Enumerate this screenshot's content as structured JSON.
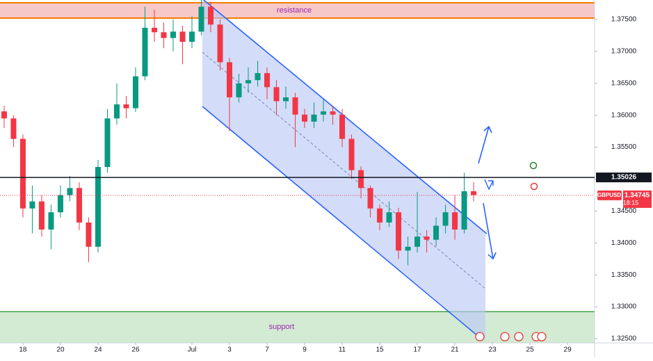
{
  "chart_data": {
    "type": "candlestick",
    "x": [
      -1,
      -0.5,
      0,
      0.5,
      1,
      1.5,
      2,
      2.5,
      3,
      3.5,
      4,
      4.5,
      5,
      5.5,
      6,
      6.5,
      7,
      7.5,
      8,
      8.5,
      9,
      9.5,
      10,
      10.5,
      11,
      11.5,
      12,
      12.5,
      13,
      13.5,
      14,
      14.5,
      15,
      15.5,
      16,
      16.5,
      17,
      17.5,
      18,
      18.5,
      19,
      19.5,
      20,
      20.5,
      21,
      21.5,
      22,
      22.5,
      23,
      23.5,
      24
    ],
    "series": [
      {
        "name": "GBPUSD",
        "up_color": "#089981",
        "down_color": "#f23645",
        "open": [
          1.3606,
          1.3595,
          1.3563,
          1.3454,
          1.3465,
          1.3421,
          1.3448,
          1.3475,
          1.3486,
          1.3432,
          1.3394,
          1.3519,
          1.3595,
          1.3617,
          1.3611,
          1.3661,
          1.3737,
          1.373,
          1.3721,
          1.3731,
          1.3715,
          1.3731,
          1.377,
          1.3742,
          1.3683,
          1.3628,
          1.365,
          1.3655,
          1.3666,
          1.3644,
          1.3622,
          1.3628,
          1.3601,
          1.359,
          1.3601,
          1.3606,
          1.3601,
          1.3563,
          1.3514,
          1.3486,
          1.3454,
          1.3432,
          1.3448,
          1.3388,
          1.3394,
          1.341,
          1.3405,
          1.3427,
          1.3448,
          1.3421,
          1.3481
        ],
        "high": [
          1.3615,
          1.36,
          1.357,
          1.349,
          1.3475,
          1.346,
          1.349,
          1.3505,
          1.3495,
          1.344,
          1.353,
          1.361,
          1.365,
          1.363,
          1.3675,
          1.377,
          1.3765,
          1.3745,
          1.375,
          1.374,
          1.3755,
          1.3781,
          1.3778,
          1.375,
          1.369,
          1.3665,
          1.3675,
          1.3685,
          1.3675,
          1.3655,
          1.3645,
          1.3635,
          1.361,
          1.362,
          1.3625,
          1.3615,
          1.361,
          1.357,
          1.352,
          1.349,
          1.346,
          1.3465,
          1.3455,
          1.341,
          1.348,
          1.342,
          1.344,
          1.346,
          1.3475,
          1.351,
          1.3495
        ],
        "low": [
          1.358,
          1.355,
          1.344,
          1.3415,
          1.341,
          1.339,
          1.344,
          1.3465,
          1.342,
          1.337,
          1.3385,
          1.351,
          1.3585,
          1.3595,
          1.3605,
          1.3655,
          1.3715,
          1.3705,
          1.37,
          1.368,
          1.3705,
          1.3725,
          1.373,
          1.367,
          1.3575,
          1.362,
          1.3635,
          1.3645,
          1.3625,
          1.36,
          1.361,
          1.355,
          1.358,
          1.358,
          1.359,
          1.3585,
          1.355,
          1.35,
          1.347,
          1.344,
          1.342,
          1.3425,
          1.3375,
          1.3365,
          1.3385,
          1.3385,
          1.3395,
          1.3415,
          1.3405,
          1.3415,
          1.3465
        ],
        "close": [
          1.3595,
          1.3563,
          1.3454,
          1.3465,
          1.3421,
          1.3448,
          1.3475,
          1.3486,
          1.3432,
          1.3394,
          1.3519,
          1.3595,
          1.3617,
          1.3611,
          1.3661,
          1.3737,
          1.373,
          1.3721,
          1.3731,
          1.3715,
          1.3731,
          1.377,
          1.3742,
          1.3683,
          1.3628,
          1.365,
          1.3655,
          1.3666,
          1.3644,
          1.3622,
          1.3628,
          1.3601,
          1.359,
          1.3601,
          1.3606,
          1.3601,
          1.3563,
          1.3514,
          1.3486,
          1.3454,
          1.3432,
          1.3448,
          1.3388,
          1.3394,
          1.341,
          1.3405,
          1.3427,
          1.3448,
          1.3421,
          1.3481,
          1.3475
        ]
      }
    ],
    "xlim": [
      -1.22,
      30.44
    ],
    "xticks": [
      {
        "value": 0,
        "label": "18"
      },
      {
        "value": 2,
        "label": "20"
      },
      {
        "value": 4,
        "label": "24"
      },
      {
        "value": 6,
        "label": "26"
      },
      {
        "value": 9,
        "label": "Jul"
      },
      {
        "value": 11,
        "label": "3"
      },
      {
        "value": 13,
        "label": "7"
      },
      {
        "value": 15,
        "label": "9"
      },
      {
        "value": 17,
        "label": "11"
      },
      {
        "value": 19,
        "label": "15"
      },
      {
        "value": 21,
        "label": "17"
      },
      {
        "value": 23,
        "label": "21"
      },
      {
        "value": 25,
        "label": "23"
      },
      {
        "value": 27,
        "label": "25"
      },
      {
        "value": 29,
        "label": "29"
      }
    ],
    "ylim": [
      1.32434,
      1.37805
    ],
    "yticks": [
      {
        "value": 1.375,
        "label": "1.37500"
      },
      {
        "value": 1.37,
        "label": "1.37000"
      },
      {
        "value": 1.365,
        "label": "1.36500"
      },
      {
        "value": 1.36,
        "label": "1.36000"
      },
      {
        "value": 1.355,
        "label": "1.35500"
      },
      {
        "value": 1.35,
        "label": "1.35000"
      },
      {
        "value": 1.345,
        "label": "1.34500"
      },
      {
        "value": 1.34,
        "label": "1.34000"
      },
      {
        "value": 1.335,
        "label": "1.33500"
      },
      {
        "value": 1.33,
        "label": "1.33000"
      },
      {
        "value": 1.325,
        "label": "1.32500"
      }
    ],
    "level": {
      "value": 1.35026,
      "label": "1.35026"
    },
    "last_price": {
      "value": 1.34745,
      "label": "1.34745"
    },
    "countdown": "18:15",
    "zone_labels": {
      "resistance": "resistance",
      "support": "support"
    }
  }
}
